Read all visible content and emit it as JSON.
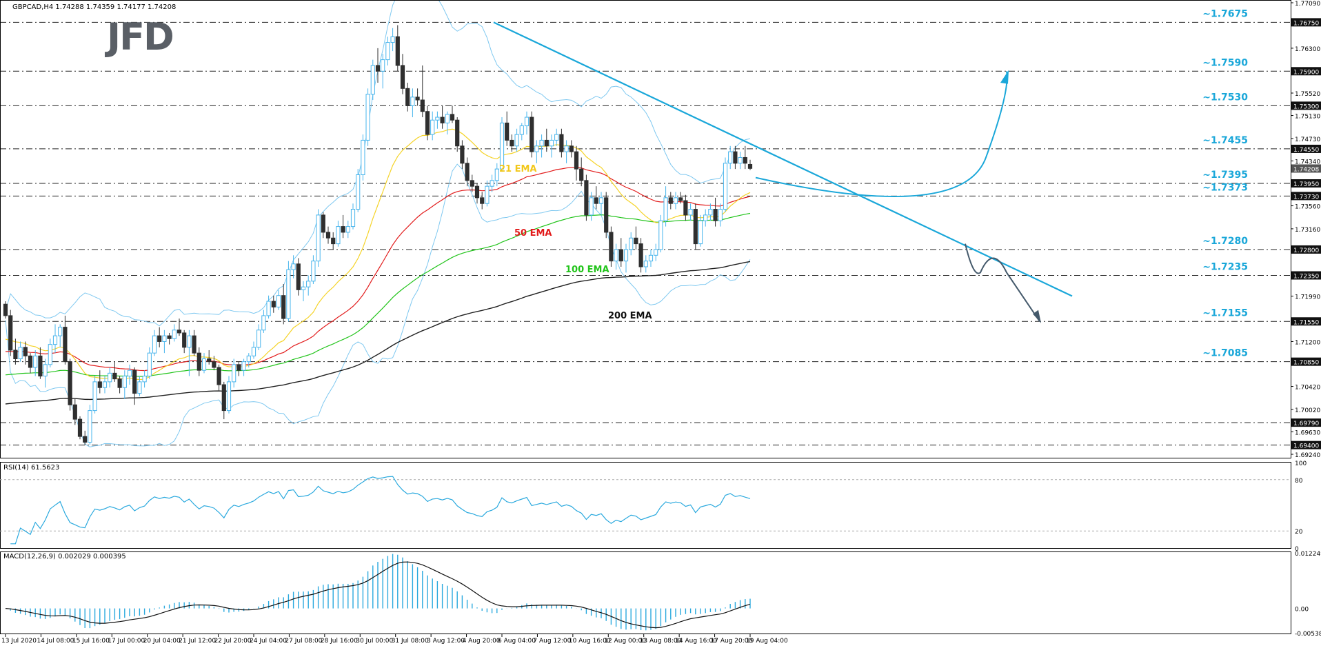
{
  "colors": {
    "up": "#46b4ec",
    "down": "#2f2f2f",
    "ema21": "#f5d327",
    "ema50": "#e21b1b",
    "ema100": "#22c41b",
    "ema200": "#1f1f1f",
    "bollinger": "#7ec8f0",
    "trend": "#1aa7d9",
    "level_label": "#1aa7d9",
    "rsi": "#2aa9de",
    "macd_hist": "#2aa9de",
    "macd_signal": "#111111",
    "grid": "#333333",
    "tag_bg": "#111111",
    "tag_text": "#ffffff"
  },
  "chart_data": [
    {
      "type": "candlestick",
      "title": "GBPCAD,H4  1.74288 1.74359 1.74177 1.74208",
      "logo": "JFD",
      "price_axis": {
        "min": 1.6924,
        "max": 1.7709,
        "ticks": [
          "1.77090",
          "1.76750",
          "1.76300",
          "1.75900",
          "1.75520",
          "1.75300",
          "1.75130",
          "1.74730",
          "1.74550",
          "1.74340",
          "1.74208",
          "1.73950",
          "1.73730",
          "1.73560",
          "1.73160",
          "1.72800",
          "1.72350",
          "1.71990",
          "1.71550",
          "1.71200",
          "1.70850",
          "1.70420",
          "1.70020",
          "1.69790",
          "1.69630",
          "1.69400",
          "1.69240"
        ]
      },
      "time_axis": {
        "labels": [
          "13 Jul 2020",
          "14 Jul 08:00",
          "15 Jul 16:00",
          "17 Jul 00:00",
          "20 Jul 04:00",
          "21 Jul 12:00",
          "22 Jul 20:00",
          "24 Jul 04:00",
          "27 Jul 08:00",
          "28 Jul 16:00",
          "30 Jul 00:00",
          "31 Jul 08:00",
          "3 Aug 12:00",
          "4 Aug 20:00",
          "6 Aug 04:00",
          "7 Aug 12:00",
          "10 Aug 16:00",
          "12 Aug 00:00",
          "13 Aug 08:00",
          "14 Aug 16:00",
          "17 Aug 20:00",
          "19 Aug 04:00"
        ]
      },
      "levels": [
        {
          "value": 1.7675,
          "label": "~1.7675",
          "tag": "1.76750"
        },
        {
          "value": 1.759,
          "label": "~1.7590",
          "tag": "1.75900"
        },
        {
          "value": 1.753,
          "label": "~1.7530",
          "tag": "1.75300"
        },
        {
          "value": 1.7455,
          "label": "~1.7455",
          "tag": "1.74550"
        },
        {
          "value": 1.7395,
          "label": "~1.7395",
          "tag": "1.73950"
        },
        {
          "value": 1.7373,
          "label": "~1.7373",
          "tag": "1.73730"
        },
        {
          "value": 1.728,
          "label": "~1.7280",
          "tag": "1.72800"
        },
        {
          "value": 1.7235,
          "label": "~1.7235",
          "tag": "1.72350"
        },
        {
          "value": 1.7155,
          "label": "~1.7155",
          "tag": "1.71550"
        },
        {
          "value": 1.7085,
          "label": "~1.7085",
          "tag": "1.70850"
        },
        {
          "value": 1.6979,
          "label": "",
          "tag": "1.69790"
        },
        {
          "value": 1.694,
          "label": "",
          "tag": "1.69400"
        }
      ],
      "current_price": {
        "value": 1.74208,
        "tag": "1.74208"
      },
      "ema_labels": {
        "ema21": "21 EMA",
        "ema50": "50 EMA",
        "ema100": "100 EMA",
        "ema200": "200 EMA"
      },
      "candles": [
        [
          1.7185,
          1.719,
          1.716,
          1.7165
        ],
        [
          1.7165,
          1.7175,
          1.7095,
          1.7105
        ],
        [
          1.7105,
          1.7125,
          1.708,
          1.709
        ],
        [
          1.709,
          1.712,
          1.7085,
          1.711
        ],
        [
          1.711,
          1.712,
          1.708,
          1.7095
        ],
        [
          1.7095,
          1.71,
          1.7065,
          1.7075
        ],
        [
          1.7075,
          1.7105,
          1.706,
          1.7095
        ],
        [
          1.7095,
          1.711,
          1.7055,
          1.706
        ],
        [
          1.706,
          1.709,
          1.704,
          1.708
        ],
        [
          1.708,
          1.7125,
          1.7075,
          1.7115
        ],
        [
          1.7115,
          1.715,
          1.71,
          1.713
        ],
        [
          1.713,
          1.715,
          1.711,
          1.7145
        ],
        [
          1.7145,
          1.7165,
          1.708,
          1.7085
        ],
        [
          1.7085,
          1.709,
          1.7,
          1.701
        ],
        [
          1.701,
          1.702,
          1.6975,
          1.6985
        ],
        [
          1.6985,
          1.699,
          1.695,
          1.6955
        ],
        [
          1.6955,
          1.6965,
          1.694,
          1.6945
        ],
        [
          1.6945,
          1.701,
          1.694,
          1.7
        ],
        [
          1.7,
          1.706,
          1.6995,
          1.705
        ],
        [
          1.705,
          1.707,
          1.703,
          1.704
        ],
        [
          1.704,
          1.706,
          1.703,
          1.705
        ],
        [
          1.705,
          1.7075,
          1.704,
          1.7065
        ],
        [
          1.7065,
          1.7085,
          1.705,
          1.7055
        ],
        [
          1.7055,
          1.706,
          1.703,
          1.704
        ],
        [
          1.704,
          1.707,
          1.702,
          1.706
        ],
        [
          1.706,
          1.708,
          1.7045,
          1.707
        ],
        [
          1.707,
          1.7075,
          1.701,
          1.703
        ],
        [
          1.703,
          1.706,
          1.7025,
          1.705
        ],
        [
          1.705,
          1.707,
          1.704,
          1.706
        ],
        [
          1.706,
          1.711,
          1.7055,
          1.71
        ],
        [
          1.71,
          1.714,
          1.7095,
          1.713
        ],
        [
          1.713,
          1.7145,
          1.711,
          1.712
        ],
        [
          1.712,
          1.714,
          1.71,
          1.713
        ],
        [
          1.713,
          1.7135,
          1.7115,
          1.7125
        ],
        [
          1.7125,
          1.715,
          1.712,
          1.714
        ],
        [
          1.714,
          1.716,
          1.713,
          1.7135
        ],
        [
          1.7135,
          1.714,
          1.71,
          1.711
        ],
        [
          1.711,
          1.714,
          1.706,
          1.713
        ],
        [
          1.713,
          1.714,
          1.7095,
          1.71
        ],
        [
          1.71,
          1.711,
          1.706,
          1.707
        ],
        [
          1.707,
          1.71,
          1.7065,
          1.709
        ],
        [
          1.709,
          1.7105,
          1.708,
          1.7085
        ],
        [
          1.7085,
          1.7095,
          1.707,
          1.7075
        ],
        [
          1.7075,
          1.708,
          1.7035,
          1.7045
        ],
        [
          1.7045,
          1.705,
          1.6985,
          1.7
        ],
        [
          1.7,
          1.706,
          1.6995,
          1.705
        ],
        [
          1.705,
          1.709,
          1.704,
          1.708
        ],
        [
          1.708,
          1.7085,
          1.706,
          1.707
        ],
        [
          1.707,
          1.709,
          1.706,
          1.7085
        ],
        [
          1.7085,
          1.71,
          1.7075,
          1.7095
        ],
        [
          1.7095,
          1.712,
          1.709,
          1.711
        ],
        [
          1.711,
          1.715,
          1.7105,
          1.714
        ],
        [
          1.714,
          1.7175,
          1.7135,
          1.7165
        ],
        [
          1.7165,
          1.72,
          1.716,
          1.719
        ],
        [
          1.719,
          1.72,
          1.717,
          1.718
        ],
        [
          1.718,
          1.721,
          1.7175,
          1.72
        ],
        [
          1.72,
          1.722,
          1.715,
          1.716
        ],
        [
          1.716,
          1.726,
          1.7155,
          1.7245
        ],
        [
          1.7245,
          1.727,
          1.723,
          1.7255
        ],
        [
          1.7255,
          1.7265,
          1.72,
          1.721
        ],
        [
          1.721,
          1.7225,
          1.719,
          1.7215
        ],
        [
          1.7215,
          1.7235,
          1.72,
          1.7225
        ],
        [
          1.7225,
          1.727,
          1.722,
          1.726
        ],
        [
          1.726,
          1.735,
          1.725,
          1.734
        ],
        [
          1.734,
          1.7345,
          1.73,
          1.731
        ],
        [
          1.731,
          1.732,
          1.729,
          1.73
        ],
        [
          1.73,
          1.731,
          1.728,
          1.729
        ],
        [
          1.729,
          1.733,
          1.7285,
          1.732
        ],
        [
          1.732,
          1.734,
          1.73,
          1.731
        ],
        [
          1.731,
          1.733,
          1.73,
          1.732
        ],
        [
          1.732,
          1.736,
          1.7315,
          1.735
        ],
        [
          1.735,
          1.742,
          1.7345,
          1.741
        ],
        [
          1.741,
          1.748,
          1.74,
          1.747
        ],
        [
          1.747,
          1.756,
          1.746,
          1.755
        ],
        [
          1.755,
          1.761,
          1.754,
          1.76
        ],
        [
          1.76,
          1.763,
          1.757,
          1.759
        ],
        [
          1.759,
          1.762,
          1.756,
          1.761
        ],
        [
          1.761,
          1.765,
          1.76,
          1.764
        ],
        [
          1.764,
          1.7665,
          1.7625,
          1.765
        ],
        [
          1.765,
          1.767,
          1.759,
          1.76
        ],
        [
          1.76,
          1.762,
          1.755,
          1.756
        ],
        [
          1.756,
          1.757,
          1.752,
          1.753
        ],
        [
          1.753,
          1.756,
          1.751,
          1.7545
        ],
        [
          1.7545,
          1.756,
          1.753,
          1.754
        ],
        [
          1.754,
          1.76,
          1.751,
          1.752
        ],
        [
          1.752,
          1.753,
          1.747,
          1.748
        ],
        [
          1.748,
          1.752,
          1.747,
          1.7505
        ],
        [
          1.7505,
          1.752,
          1.749,
          1.751
        ],
        [
          1.751,
          1.753,
          1.749,
          1.75
        ],
        [
          1.75,
          1.752,
          1.748,
          1.7515
        ],
        [
          1.7515,
          1.753,
          1.75,
          1.7505
        ],
        [
          1.7505,
          1.751,
          1.745,
          1.746
        ],
        [
          1.746,
          1.747,
          1.742,
          1.743
        ],
        [
          1.743,
          1.744,
          1.739,
          1.74
        ],
        [
          1.74,
          1.741,
          1.738,
          1.739
        ],
        [
          1.739,
          1.7395,
          1.736,
          1.737
        ],
        [
          1.737,
          1.738,
          1.735,
          1.736
        ],
        [
          1.736,
          1.74,
          1.7355,
          1.739
        ],
        [
          1.739,
          1.741,
          1.738,
          1.74
        ],
        [
          1.74,
          1.743,
          1.739,
          1.742
        ],
        [
          1.742,
          1.751,
          1.7415,
          1.75
        ],
        [
          1.75,
          1.752,
          1.746,
          1.747
        ],
        [
          1.747,
          1.748,
          1.745,
          1.746
        ],
        [
          1.746,
          1.749,
          1.745,
          1.748
        ],
        [
          1.748,
          1.75,
          1.747,
          1.7495
        ],
        [
          1.7495,
          1.752,
          1.748,
          1.751
        ],
        [
          1.751,
          1.752,
          1.744,
          1.745
        ],
        [
          1.745,
          1.747,
          1.743,
          1.746
        ],
        [
          1.746,
          1.748,
          1.744,
          1.747
        ],
        [
          1.747,
          1.749,
          1.745,
          1.746
        ],
        [
          1.746,
          1.748,
          1.744,
          1.747
        ],
        [
          1.747,
          1.749,
          1.746,
          1.748
        ],
        [
          1.748,
          1.749,
          1.744,
          1.745
        ],
        [
          1.745,
          1.747,
          1.743,
          1.746
        ],
        [
          1.746,
          1.747,
          1.744,
          1.745
        ],
        [
          1.745,
          1.746,
          1.74,
          1.742
        ],
        [
          1.742,
          1.744,
          1.739,
          1.74
        ],
        [
          1.74,
          1.741,
          1.733,
          1.734
        ],
        [
          1.734,
          1.738,
          1.733,
          1.737
        ],
        [
          1.737,
          1.739,
          1.735,
          1.736
        ],
        [
          1.736,
          1.738,
          1.734,
          1.737
        ],
        [
          1.737,
          1.738,
          1.73,
          1.731
        ],
        [
          1.731,
          1.732,
          1.725,
          1.726
        ],
        [
          1.726,
          1.729,
          1.7245,
          1.728
        ],
        [
          1.728,
          1.73,
          1.725,
          1.726
        ],
        [
          1.726,
          1.729,
          1.724,
          1.728
        ],
        [
          1.728,
          1.731,
          1.727,
          1.73
        ],
        [
          1.73,
          1.732,
          1.728,
          1.729
        ],
        [
          1.729,
          1.73,
          1.724,
          1.725
        ],
        [
          1.725,
          1.727,
          1.724,
          1.726
        ],
        [
          1.726,
          1.728,
          1.725,
          1.727
        ],
        [
          1.727,
          1.729,
          1.726,
          1.728
        ],
        [
          1.728,
          1.734,
          1.7275,
          1.733
        ],
        [
          1.733,
          1.739,
          1.732,
          1.737
        ],
        [
          1.737,
          1.738,
          1.735,
          1.736
        ],
        [
          1.736,
          1.738,
          1.735,
          1.737
        ],
        [
          1.737,
          1.738,
          1.736,
          1.7365
        ],
        [
          1.7365,
          1.7375,
          1.733,
          1.734
        ],
        [
          1.734,
          1.736,
          1.733,
          1.735
        ],
        [
          1.735,
          1.736,
          1.728,
          1.729
        ],
        [
          1.729,
          1.734,
          1.7285,
          1.733
        ],
        [
          1.733,
          1.735,
          1.732,
          1.734
        ],
        [
          1.734,
          1.736,
          1.733,
          1.735
        ],
        [
          1.735,
          1.737,
          1.732,
          1.733
        ],
        [
          1.733,
          1.736,
          1.732,
          1.735
        ],
        [
          1.735,
          1.744,
          1.7345,
          1.743
        ],
        [
          1.743,
          1.746,
          1.742,
          1.745
        ],
        [
          1.745,
          1.746,
          1.742,
          1.743
        ],
        [
          1.743,
          1.745,
          1.742,
          1.744
        ],
        [
          1.744,
          1.746,
          1.742,
          1.743
        ],
        [
          1.7428,
          1.7436,
          1.7418,
          1.7421
        ]
      ]
    },
    {
      "type": "line",
      "title": "RSI(14) 61.5623",
      "ylim": [
        0,
        100
      ],
      "ticks": [
        "100",
        "80",
        "20",
        "0"
      ]
    },
    {
      "type": "bar",
      "title": "MACD(12,26,9) 0.002029 0.000395",
      "ticks": [
        "0.012249",
        "0.00",
        "-0.005383"
      ]
    }
  ]
}
